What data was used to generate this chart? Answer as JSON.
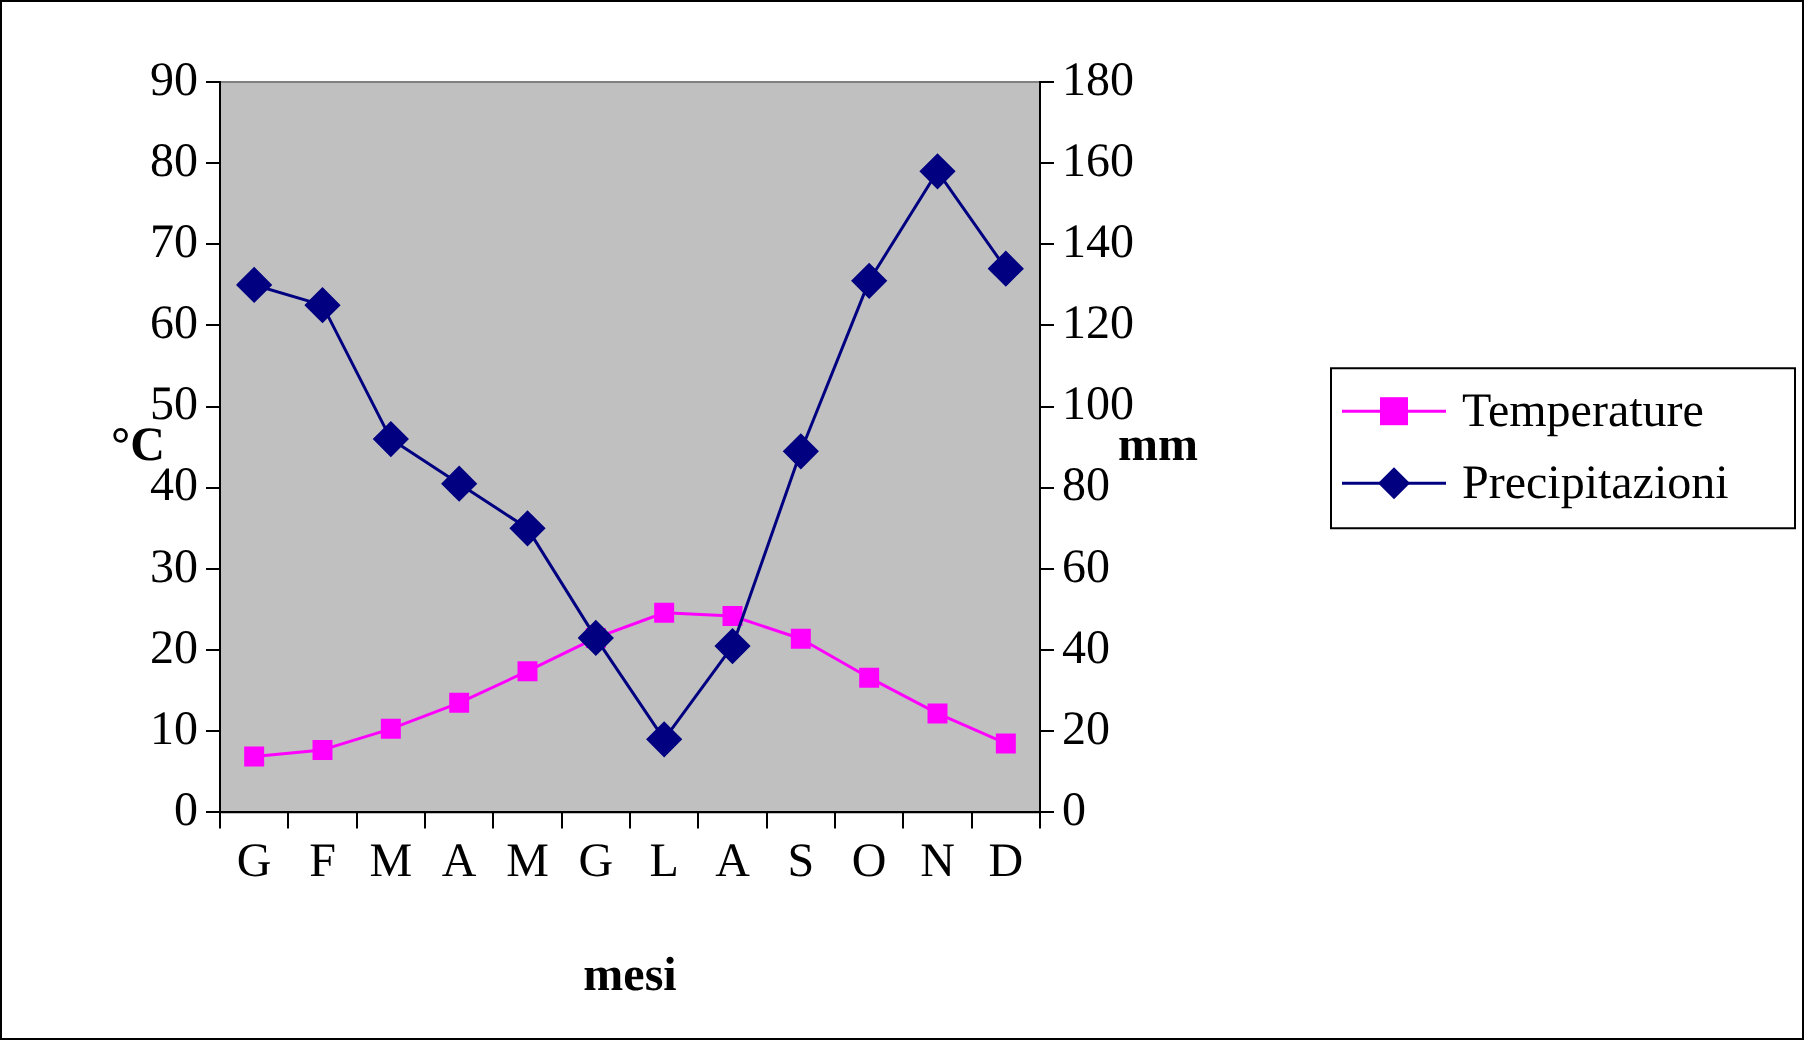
{
  "chart_data": {
    "type": "line",
    "xlabel": "mesi",
    "ylabel": "°C",
    "y2label": "mm",
    "categories": [
      "G",
      "F",
      "M",
      "A",
      "M",
      "G",
      "L",
      "A",
      "S",
      "O",
      "N",
      "D"
    ],
    "series": [
      {
        "name": "Temperature",
        "color": "#ff00ff",
        "marker": "square",
        "values": [
          6.9,
          7.7,
          10.3,
          13.5,
          17.4,
          21.5,
          24.6,
          24.2,
          21.4,
          16.6,
          12.2,
          8.5
        ]
      },
      {
        "name": "Precipitazioni",
        "color": "#000080",
        "marker": "diamond",
        "axis": "y2",
        "values": [
          130,
          125,
          92,
          81,
          70,
          43,
          18,
          41,
          89,
          131,
          158,
          134
        ]
      }
    ],
    "ylim": [
      0,
      90
    ],
    "yticks": [
      0,
      10,
      20,
      30,
      40,
      50,
      60,
      70,
      80,
      90
    ],
    "y2lim": [
      0,
      180
    ],
    "y2ticks": [
      0,
      20,
      40,
      60,
      80,
      100,
      120,
      140,
      160,
      180
    ],
    "grid": false,
    "legend": "right",
    "line_style": "solid"
  }
}
